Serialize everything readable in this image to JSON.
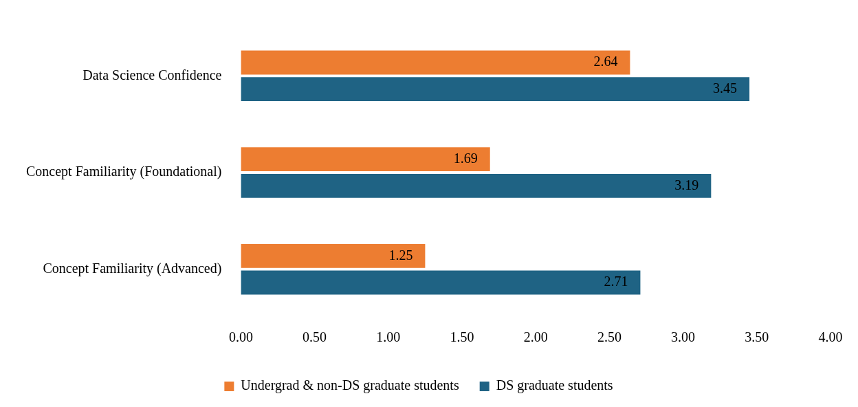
{
  "chart_data": {
    "type": "bar",
    "orientation": "horizontal",
    "categories": [
      "Data Science Confidence",
      "Concept Familiarity (Foundational)",
      "Concept Familiarity (Advanced)"
    ],
    "series": [
      {
        "name": "Undergrad & non-DS graduate students",
        "color": "#ed7d31",
        "values": [
          2.64,
          1.69,
          1.25
        ]
      },
      {
        "name": "DS graduate students",
        "color": "#1f6384",
        "values": [
          3.45,
          3.19,
          2.71
        ]
      }
    ],
    "xlim": [
      0,
      4
    ],
    "xticks": [
      {
        "value": 0,
        "label": "0.00"
      },
      {
        "value": 0.5,
        "label": "0.50"
      },
      {
        "value": 1,
        "label": "1.00"
      },
      {
        "value": 1.5,
        "label": "1.50"
      },
      {
        "value": 2,
        "label": "2.00"
      },
      {
        "value": 2.5,
        "label": "2.50"
      },
      {
        "value": 3,
        "label": "3.00"
      },
      {
        "value": 3.5,
        "label": "3.50"
      },
      {
        "value": 4,
        "label": "4.00"
      }
    ],
    "data_labels": true,
    "grid": false,
    "legend": "bottom"
  }
}
